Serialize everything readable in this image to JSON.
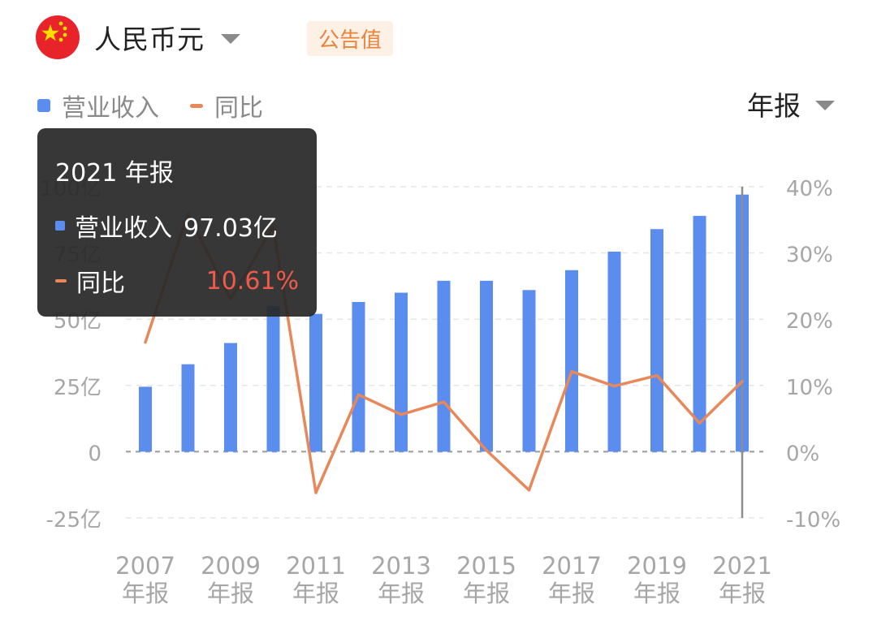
{
  "header": {
    "currency": "人民币元",
    "badge": "公告值",
    "period": "年报",
    "flag_icon": "china-flag-icon"
  },
  "legend": [
    {
      "label": "营业收入",
      "color": "#5b8def"
    },
    {
      "label": "同比",
      "color": "#e8885a"
    }
  ],
  "tooltip": {
    "title": "2021 年报",
    "rows": [
      {
        "label": "营业收入",
        "value": "97.03亿"
      },
      {
        "label": "同比",
        "value": "10.61%"
      }
    ]
  },
  "chart_data": {
    "type": "bar",
    "categories": [
      "2007",
      "2008",
      "2009",
      "2010",
      "2011",
      "2012",
      "2013",
      "2014",
      "2015",
      "2016",
      "2017",
      "2018",
      "2019",
      "2020",
      "2021"
    ],
    "x_tick_labels": [
      {
        "category": "2007",
        "line1": "2007",
        "line2": "年报"
      },
      {
        "category": "2009",
        "line1": "2009",
        "line2": "年报"
      },
      {
        "category": "2011",
        "line1": "2011",
        "line2": "年报"
      },
      {
        "category": "2013",
        "line1": "2013",
        "line2": "年报"
      },
      {
        "category": "2015",
        "line1": "2015",
        "line2": "年报"
      },
      {
        "category": "2017",
        "line1": "2017",
        "line2": "年报"
      },
      {
        "category": "2019",
        "line1": "2019",
        "line2": "年报"
      },
      {
        "category": "2021",
        "line1": "2021",
        "line2": "年报"
      }
    ],
    "series": [
      {
        "name": "营业收入",
        "type": "bar",
        "axis": "left",
        "color": "#5b8def",
        "values": [
          24.5,
          33,
          41,
          55,
          52,
          56.5,
          60,
          64.5,
          64.5,
          61,
          68.5,
          75.5,
          84,
          89,
          97.03
        ]
      },
      {
        "name": "同比",
        "type": "line",
        "axis": "right",
        "color": "#e8885a",
        "values": [
          16.5,
          36,
          23,
          34,
          -6.2,
          8.6,
          5.6,
          7.5,
          0.2,
          -5.8,
          12.1,
          9.9,
          11.5,
          4.3,
          10.61
        ]
      }
    ],
    "y_left": {
      "ylim": [
        -25,
        100
      ],
      "ticks": [
        -25,
        0,
        25,
        50,
        75,
        100
      ],
      "tick_labels": [
        "-25亿",
        "0",
        "25亿",
        "50亿",
        "75亿",
        "100亿"
      ]
    },
    "y_right": {
      "ylim": [
        -10,
        40
      ],
      "ticks": [
        -10,
        0,
        10,
        20,
        30,
        40
      ],
      "tick_labels": [
        "-10%",
        "0%",
        "10%",
        "20%",
        "30%",
        "40%"
      ]
    },
    "grid": true,
    "highlight_category": "2021"
  }
}
